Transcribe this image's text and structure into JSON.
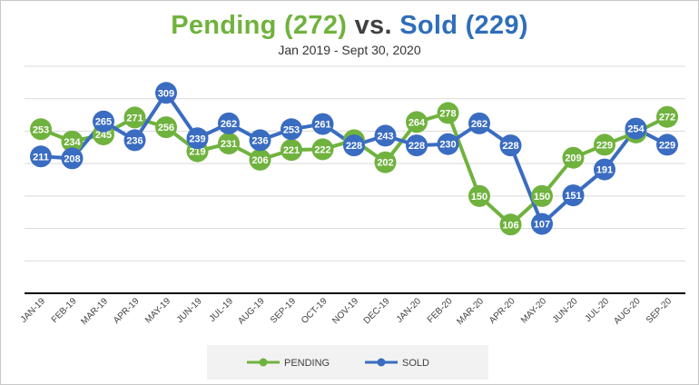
{
  "chart_data": {
    "type": "line",
    "title": {
      "pending_text": "Pending (272)",
      "vs_text": "vs.",
      "sold_text": "Sold (229)"
    },
    "subtitle": "Jan 2019 - Sept 30, 2020",
    "categories": [
      "JAN-19",
      "FEB-19",
      "MAR-19",
      "APR-19",
      "MAY-19",
      "JUN-19",
      "JUL-19",
      "AUG-19",
      "SEP-19",
      "OCT-19",
      "NOV-19",
      "DEC-19",
      "JAN-20",
      "FEB-20",
      "MAR-20",
      "APR-20",
      "MAY-20",
      "JUN-20",
      "JUL-20",
      "AUG-20",
      "SEP-20"
    ],
    "series": [
      {
        "name": "PENDING",
        "color": "#70b23e",
        "values": [
          253,
          234,
          245,
          271,
          256,
          219,
          231,
          206,
          221,
          222,
          236,
          202,
          264,
          278,
          150,
          106,
          150,
          209,
          229,
          248,
          272
        ]
      },
      {
        "name": "SOLD",
        "color": "#3a6cc1",
        "values": [
          211,
          208,
          265,
          236,
          309,
          239,
          262,
          236,
          253,
          261,
          228,
          243,
          228,
          230,
          262,
          228,
          107,
          151,
          191,
          254,
          229
        ]
      }
    ],
    "ylim": [
      0,
      350
    ],
    "grid": true,
    "legend": "bottom",
    "xlabel": "",
    "ylabel": ""
  }
}
